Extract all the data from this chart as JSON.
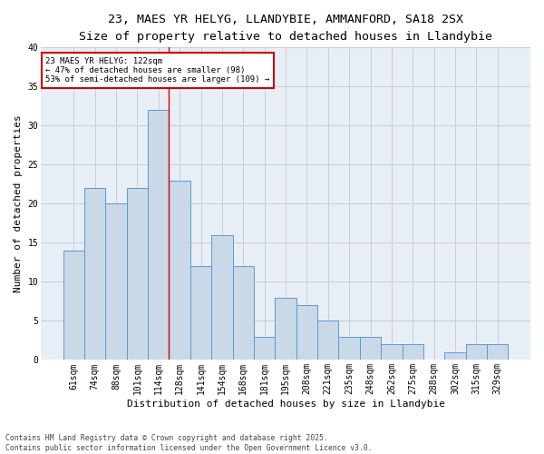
{
  "title1": "23, MAES YR HELYG, LLANDYBIE, AMMANFORD, SA18 2SX",
  "title2": "Size of property relative to detached houses in Llandybie",
  "xlabel": "Distribution of detached houses by size in Llandybie",
  "ylabel": "Number of detached properties",
  "categories": [
    "61sqm",
    "74sqm",
    "88sqm",
    "101sqm",
    "114sqm",
    "128sqm",
    "141sqm",
    "154sqm",
    "168sqm",
    "181sqm",
    "195sqm",
    "208sqm",
    "221sqm",
    "235sqm",
    "248sqm",
    "262sqm",
    "275sqm",
    "288sqm",
    "302sqm",
    "315sqm",
    "329sqm"
  ],
  "values": [
    14,
    22,
    20,
    22,
    32,
    23,
    12,
    16,
    12,
    3,
    8,
    7,
    5,
    3,
    3,
    2,
    2,
    0,
    1,
    2,
    2
  ],
  "bar_color": "#c9d9e8",
  "bar_edge_color": "#5b9bd5",
  "annotation_text": "23 MAES YR HELYG: 122sqm\n← 47% of detached houses are smaller (98)\n53% of semi-detached houses are larger (109) →",
  "annotation_box_color": "#ffffff",
  "annotation_box_edge_color": "#cc0000",
  "vline_color": "#cc0000",
  "grid_color": "#c0c8d8",
  "background_color": "#e8eef5",
  "ylim": [
    0,
    40
  ],
  "yticks": [
    0,
    5,
    10,
    15,
    20,
    25,
    30,
    35,
    40
  ],
  "footer": "Contains HM Land Registry data © Crown copyright and database right 2025.\nContains public sector information licensed under the Open Government Licence v3.0.",
  "title_fontsize": 9.5,
  "subtitle_fontsize": 8,
  "axis_label_fontsize": 8,
  "tick_fontsize": 7,
  "annotation_fontsize": 6.5,
  "footer_fontsize": 5.8
}
